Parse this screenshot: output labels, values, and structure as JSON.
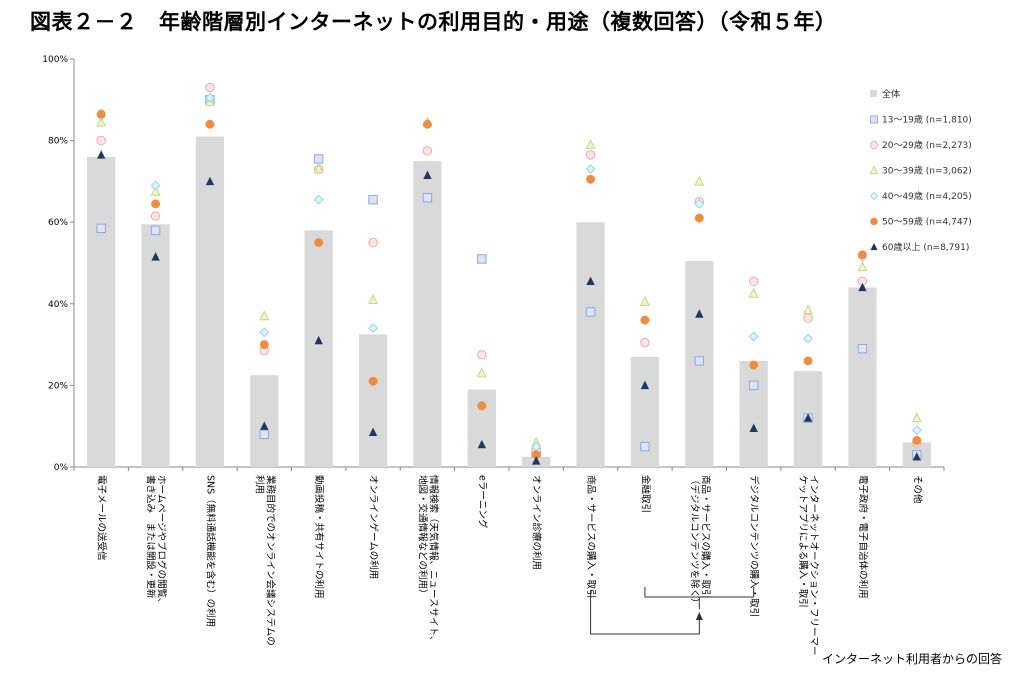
{
  "title": "図表２－２　年齢階層別インターネットの利用目的・用途（複数回答）（令和５年）",
  "footnote": "インターネット利用者からの回答",
  "chart_data": {
    "type": "bar",
    "ylim": [
      0,
      100
    ],
    "yticks": [
      "0%",
      "20%",
      "40%",
      "60%",
      "80%",
      "100%"
    ],
    "grid": false,
    "legend_position": "right",
    "categories": [
      [
        "電子メールの送受信"
      ],
      [
        "ホームページやブログの閲覧、",
        "書き込み　または開設・更新"
      ],
      [
        "SNS（無料通話機能を含む）の利用"
      ],
      [
        "業務目的でのオンライン会議システムの",
        "利用"
      ],
      [
        "動画投稿・共有サイトの利用"
      ],
      [
        "オンラインゲームの利用"
      ],
      [
        "情報検索（天気情報、ニュースサイト、",
        "地図・交通情報などの利用）"
      ],
      [
        "eラーニング"
      ],
      [
        "オンライン診療の利用"
      ],
      [
        "商品・サービスの購入・取引"
      ],
      [
        "金融取引"
      ],
      [
        "商品・サービスの購入・取引",
        "（デジタルコンテンツを除く）"
      ],
      [
        "デジタルコンテンツの購入・取引"
      ],
      [
        "インターネットオークション・フリーマー",
        "ケットアプリによる購入・取引"
      ],
      [
        "電子政府・電子自治体の利用"
      ],
      [
        "その他"
      ]
    ],
    "series": [
      {
        "name": "全体",
        "marker": "bar",
        "color": "#d9d9d9",
        "values": [
          76,
          59.5,
          81,
          22.5,
          58,
          32.5,
          75,
          19,
          2.5,
          60,
          27,
          50.5,
          26,
          23.5,
          44,
          6
        ]
      },
      {
        "name": "13～19歳 (n=1,810)",
        "marker": "square",
        "color": "#8eaadb",
        "values": [
          58.5,
          58,
          90,
          8,
          75.5,
          65.5,
          66,
          51,
          3.5,
          38,
          5,
          26,
          20,
          12,
          29,
          3
        ]
      },
      {
        "name": "20～29歳 (n=2,273)",
        "marker": "circle",
        "color": "#f4a5a5",
        "values": [
          80,
          61.5,
          93,
          28.5,
          73,
          55,
          77.5,
          27.5,
          4,
          76.5,
          30.5,
          65,
          45.5,
          36.5,
          45.5,
          6
        ]
      },
      {
        "name": "30～39歳 (n=3,062)",
        "marker": "triangle-open",
        "color": "#c5d97a",
        "values": [
          84.5,
          67.5,
          89.5,
          37,
          73,
          41,
          84.5,
          23,
          6,
          79,
          40.5,
          70,
          42.5,
          38.5,
          49,
          12
        ]
      },
      {
        "name": "40～49歳 (n=4,205)",
        "marker": "diamond",
        "color": "#8fd3f0",
        "values": [
          86,
          69,
          90.5,
          33,
          65.5,
          34,
          84,
          15,
          5,
          73,
          36,
          64.5,
          32,
          31.5,
          51.5,
          9
        ]
      },
      {
        "name": "50～59歳 (n=4,747)",
        "marker": "circle-filled",
        "color": "#f28c3c",
        "values": [
          86.5,
          64.5,
          84,
          30,
          55,
          21,
          84,
          15,
          3,
          70.5,
          36,
          61,
          25,
          26,
          52,
          6.5
        ]
      },
      {
        "name": "60歳以上 (n=8,791)",
        "marker": "triangle-filled",
        "color": "#1f3864",
        "values": [
          76.5,
          51.5,
          70,
          10,
          31,
          8.5,
          71.5,
          5.5,
          1.5,
          45.5,
          20,
          37.5,
          9.5,
          12,
          44,
          2.5
        ]
      }
    ]
  }
}
